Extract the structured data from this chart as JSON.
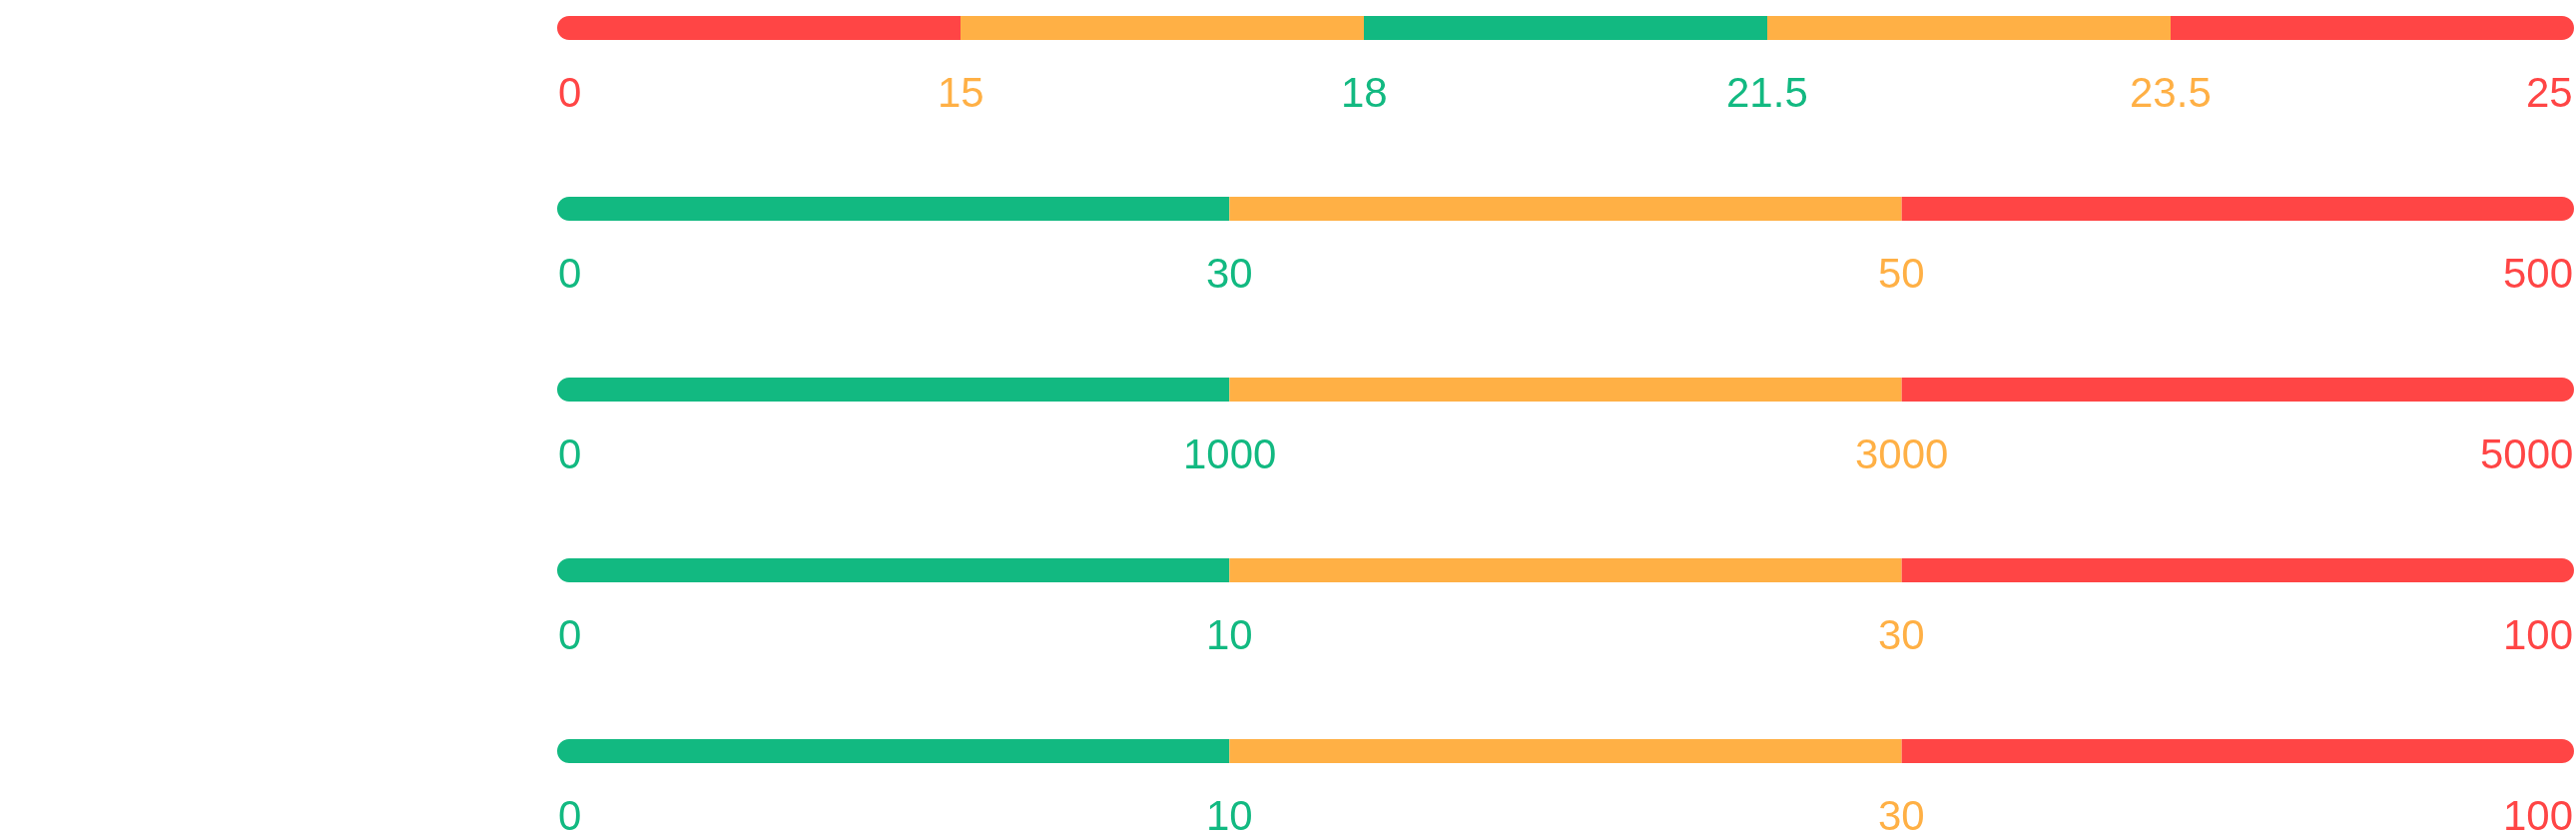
{
  "chart_data": [
    {
      "type": "other",
      "values": [
        0,
        15,
        18,
        21.5,
        23.5,
        25
      ],
      "colors": [
        "#ff4545",
        "#ffb045",
        "#12b981",
        "#12b981",
        "#ffb045",
        "#ff4545"
      ],
      "data_labels": true
    },
    {
      "type": "other",
      "values": [
        0,
        30,
        50,
        500
      ],
      "colors": [
        "#12b981",
        "#12b981",
        "#ffb045",
        "#ff4545"
      ],
      "data_labels": true
    },
    {
      "type": "other",
      "values": [
        0,
        1000,
        3000,
        5000
      ],
      "colors": [
        "#12b981",
        "#12b981",
        "#ffb045",
        "#ff4545"
      ],
      "data_labels": true
    },
    {
      "type": "other",
      "values": [
        0,
        10,
        30,
        100
      ],
      "colors": [
        "#12b981",
        "#12b981",
        "#ffb045",
        "#ff4545"
      ],
      "data_labels": true
    },
    {
      "type": "other",
      "values": [
        0,
        10,
        30,
        100
      ],
      "colors": [
        "#12b981",
        "#12b981",
        "#ffb045",
        "#ff4545"
      ],
      "data_labels": true
    }
  ]
}
